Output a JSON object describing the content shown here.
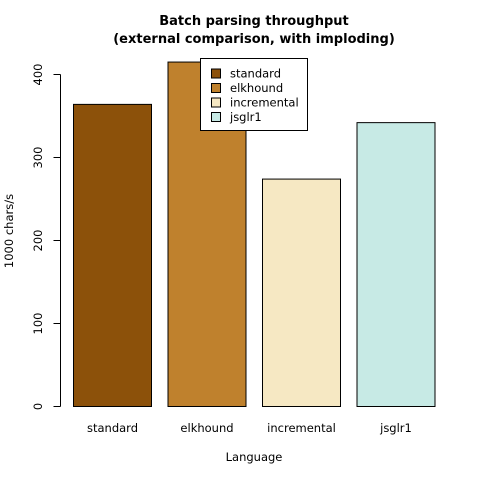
{
  "chart_data": {
    "type": "bar",
    "title_lines": [
      "Batch parsing throughput",
      "(external comparison, with imploding)"
    ],
    "xlabel": "Language",
    "ylabel": "1000 chars/s",
    "categories": [
      "standard",
      "elkhound",
      "incremental",
      "jsglr1"
    ],
    "values": [
      364,
      415,
      274,
      342
    ],
    "colors": [
      "#8c510a",
      "#bf812d",
      "#f6e8c3",
      "#c7eae5"
    ],
    "ylim": [
      0,
      400
    ],
    "yticks": [
      0,
      100,
      200,
      300,
      400
    ],
    "ytick_labels": [
      "0",
      "100",
      "200",
      "300",
      "400"
    ],
    "grid": false,
    "legend": {
      "position": "top-center",
      "entries": [
        "standard",
        "elkhound",
        "incremental",
        "jsglr1"
      ]
    }
  }
}
